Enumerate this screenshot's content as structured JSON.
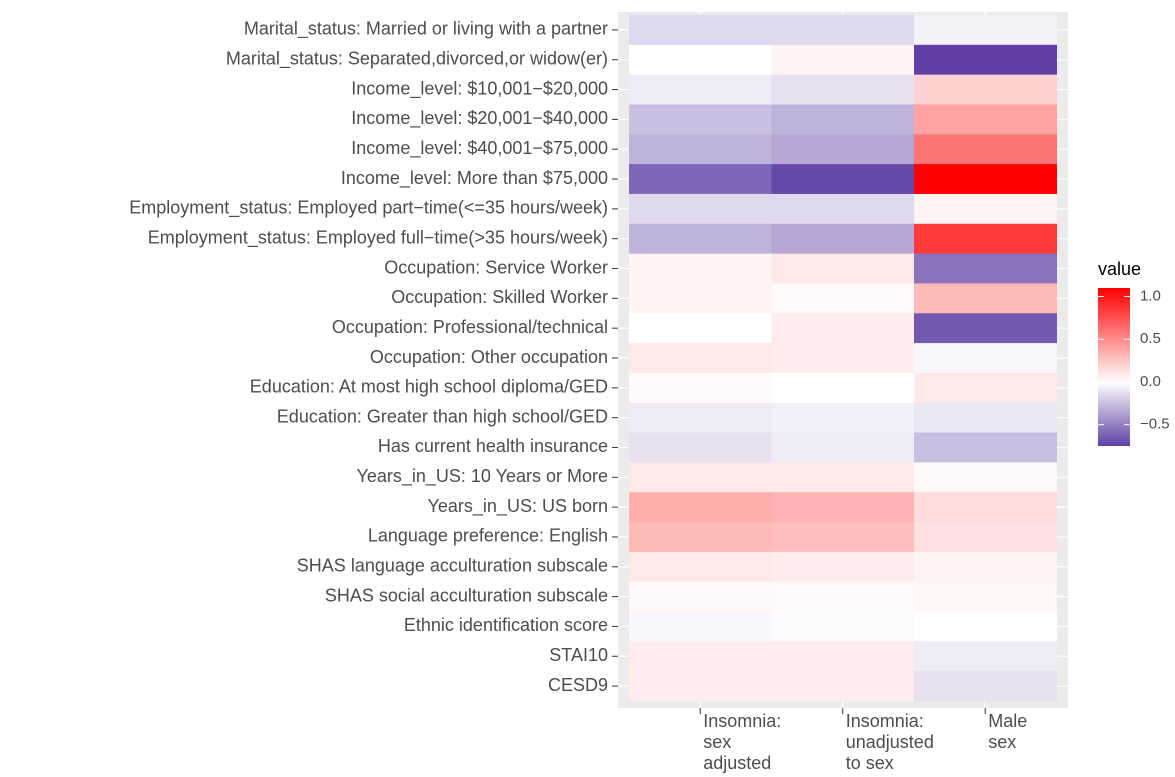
{
  "chart_data": {
    "type": "heatmap",
    "y_categories": [
      "Marital_status: Married or living with a partner",
      "Marital_status: Separated,divorced,or widow(er)",
      "Income_level: $10,001−$20,000",
      "Income_level: $20,001−$40,000",
      "Income_level: $40,001−$75,000",
      "Income_level: More than $75,000",
      "Employment_status: Employed part−time(<=35 hours/week)",
      "Employment_status: Employed full−time(>35 hours/week)",
      "Occupation: Service Worker",
      "Occupation: Skilled Worker",
      "Occupation: Professional/technical",
      "Occupation: Other occupation",
      "Education: At most high school diploma/GED",
      "Education: Greater than high school/GED",
      "Has current health insurance",
      "Years_in_US: 10 Years or More",
      "Years_in_US: US born",
      "Language preference: English",
      "SHAS language acculturation subscale",
      "SHAS social acculturation subscale",
      "Ethnic identification score",
      "STAI10",
      "CESD9"
    ],
    "x_categories": [
      "Insomnia:\nsex\nadjusted",
      "Insomnia:\nunadjusted\nto sex",
      "Male\nsex"
    ],
    "values": [
      [
        -0.15,
        -0.15,
        -0.05
      ],
      [
        0.0,
        0.05,
        -0.75
      ],
      [
        -0.08,
        -0.12,
        0.2
      ],
      [
        -0.25,
        -0.3,
        0.4
      ],
      [
        -0.3,
        -0.35,
        0.6
      ],
      [
        -0.6,
        -0.72,
        1.1
      ],
      [
        -0.15,
        -0.15,
        0.05
      ],
      [
        -0.3,
        -0.35,
        0.85
      ],
      [
        0.05,
        0.1,
        -0.55
      ],
      [
        0.05,
        0.02,
        0.3
      ],
      [
        0.0,
        0.08,
        -0.65
      ],
      [
        0.1,
        0.08,
        -0.03
      ],
      [
        0.02,
        0.0,
        0.1
      ],
      [
        -0.08,
        -0.06,
        -0.1
      ],
      [
        -0.12,
        -0.08,
        -0.25
      ],
      [
        0.1,
        0.1,
        0.03
      ],
      [
        0.35,
        0.33,
        0.15
      ],
      [
        0.3,
        0.28,
        0.13
      ],
      [
        0.1,
        0.08,
        0.05
      ],
      [
        0.03,
        0.02,
        0.04
      ],
      [
        -0.03,
        -0.02,
        0.0
      ],
      [
        0.08,
        0.08,
        -0.08
      ],
      [
        0.08,
        0.08,
        -0.12
      ]
    ],
    "legend_title": "value",
    "zlim": [
      -0.75,
      1.1
    ],
    "zticks": [
      {
        "value": -0.5,
        "label": "−0.5"
      },
      {
        "value": 0,
        "label": "0.0"
      },
      0.5,
      {
        "value": 1,
        "label": "1.0"
      }
    ],
    "colors": {
      "low": "#6040a4",
      "mid": "#ffffff",
      "high": "#ff0000"
    }
  }
}
